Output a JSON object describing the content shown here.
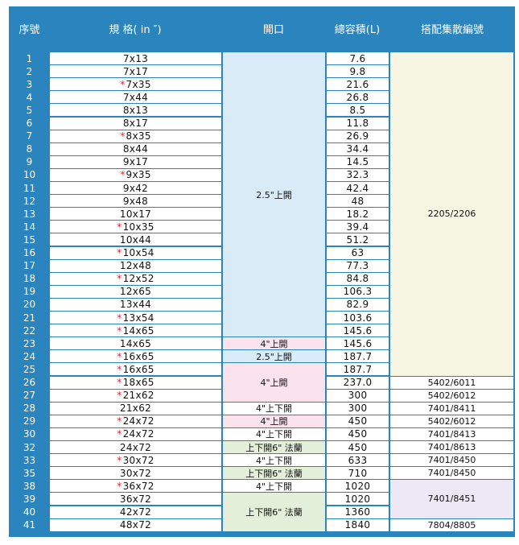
{
  "headers": [
    "序號",
    "規 格( in ″)",
    "開口",
    "總容積(L)",
    "搭配集散編號"
  ],
  "rows": [
    {
      "no": "1",
      "star": false,
      "spec": "7x13",
      "vol": "7.6"
    },
    {
      "no": "2",
      "star": false,
      "spec": "7x17",
      "vol": "9.8"
    },
    {
      "no": "3",
      "star": true,
      "spec": "7x35",
      "vol": "21.6"
    },
    {
      "no": "4",
      "star": false,
      "spec": "7x44",
      "vol": "26.8"
    },
    {
      "no": "5",
      "star": false,
      "spec": "8x13",
      "vol": "8.5"
    },
    {
      "no": "6",
      "star": false,
      "spec": "8x17",
      "vol": "11.8"
    },
    {
      "no": "7",
      "star": true,
      "spec": "8x35",
      "vol": "26.9"
    },
    {
      "no": "8",
      "star": false,
      "spec": "8x44",
      "vol": "34.4"
    },
    {
      "no": "9",
      "star": false,
      "spec": "9x17",
      "vol": "14.5"
    },
    {
      "no": "10",
      "star": true,
      "spec": "9x35",
      "vol": "32.3"
    },
    {
      "no": "11",
      "star": false,
      "spec": "9x42",
      "vol": "42.4"
    },
    {
      "no": "12",
      "star": false,
      "spec": "9x48",
      "vol": "48"
    },
    {
      "no": "13",
      "star": false,
      "spec": "10x17",
      "vol": "18.2"
    },
    {
      "no": "14",
      "star": true,
      "spec": "10x35",
      "vol": "39.4"
    },
    {
      "no": "15",
      "star": false,
      "spec": "10x44",
      "vol": "51.2"
    },
    {
      "no": "16",
      "star": true,
      "spec": "10x54",
      "vol": "63"
    },
    {
      "no": "17",
      "star": false,
      "spec": "12x48",
      "vol": "77.3"
    },
    {
      "no": "18",
      "star": true,
      "spec": "12x52",
      "vol": "84.8"
    },
    {
      "no": "19",
      "star": false,
      "spec": "12x65",
      "vol": "106.3"
    },
    {
      "no": "20",
      "star": false,
      "spec": "13x44",
      "vol": "82.9"
    },
    {
      "no": "21",
      "star": true,
      "spec": "13x54",
      "vol": "103.6"
    },
    {
      "no": "22",
      "star": true,
      "spec": "14x65",
      "vol": "145.6"
    },
    {
      "no": "23",
      "star": false,
      "spec": "14x65",
      "vol": "145.6"
    },
    {
      "no": "24",
      "star": true,
      "spec": "16x65",
      "vol": "187.7"
    },
    {
      "no": "25",
      "star": true,
      "spec": "16x65",
      "vol": "187.7"
    },
    {
      "no": "26",
      "star": true,
      "spec": "18x65",
      "vol": "237.0"
    },
    {
      "no": "27",
      "star": true,
      "spec": "21x62",
      "vol": "300"
    },
    {
      "no": "28",
      "star": false,
      "spec": "21x62",
      "vol": "300"
    },
    {
      "no": "29",
      "star": true,
      "spec": "24x72",
      "vol": "450"
    },
    {
      "no": "30",
      "star": true,
      "spec": "24x72",
      "vol": "450"
    },
    {
      "no": "32",
      "star": false,
      "spec": "24x72",
      "vol": "450"
    },
    {
      "no": "33",
      "star": true,
      "spec": "30x72",
      "vol": "633"
    },
    {
      "no": "35",
      "star": false,
      "spec": "30x72",
      "vol": "710"
    },
    {
      "no": "38",
      "star": true,
      "spec": "36x72",
      "vol": "1020"
    },
    {
      "no": "39",
      "star": false,
      "spec": "36x72",
      "vol": "1020"
    },
    {
      "no": "40",
      "star": false,
      "spec": "42x72",
      "vol": "1360"
    },
    {
      "no": "41",
      "star": false,
      "spec": "48x72",
      "vol": "1840"
    }
  ],
  "star_symbol": "*",
  "openings": [
    {
      "text": "2.5\"上開",
      "start": 0,
      "span": 22,
      "color": "#d9ebf6"
    },
    {
      "text": "4\"上開",
      "start": 22,
      "span": 1,
      "color": "#fbe3ee"
    },
    {
      "text": "2.5\"上開",
      "start": 23,
      "span": 1,
      "color": "#d9ebf6"
    },
    {
      "text": "4\"上開",
      "start": 24,
      "span": 3,
      "color": "#fbe3ee"
    },
    {
      "text": "4\"上下開",
      "start": 27,
      "span": 1,
      "color": "#ffffff"
    },
    {
      "text": "4\"上開",
      "start": 28,
      "span": 1,
      "color": "#fbe3ee"
    },
    {
      "text": "4\"上下開",
      "start": 29,
      "span": 1,
      "color": "#ffffff"
    },
    {
      "text": "上下開6\"  法蘭",
      "start": 30,
      "span": 1,
      "color": "#e3efd9"
    },
    {
      "text": "4\"上下開",
      "start": 31,
      "span": 1,
      "color": "#ffffff"
    },
    {
      "text": "上下開6\"  法蘭",
      "start": 32,
      "span": 1,
      "color": "#e3efd9"
    },
    {
      "text": "4\"上下開",
      "start": 33,
      "span": 1,
      "color": "#ffffff"
    },
    {
      "text": "上下開6\"  法蘭",
      "start": 34,
      "span": 3,
      "color": "#e3efd9"
    }
  ],
  "matches": [
    {
      "text": "2205/2206",
      "start": 0,
      "span": 25,
      "color": "#f6f6e2"
    },
    {
      "text": "5402/6011",
      "start": 25,
      "span": 1,
      "color": "#ffffff"
    },
    {
      "text": "5402/6012",
      "start": 26,
      "span": 1,
      "color": "#ffffff"
    },
    {
      "text": "7401/8411",
      "start": 27,
      "span": 1,
      "color": "#ffffff"
    },
    {
      "text": "5402/6012",
      "start": 28,
      "span": 1,
      "color": "#ffffff"
    },
    {
      "text": "7401/8413",
      "start": 29,
      "span": 1,
      "color": "#ffffff"
    },
    {
      "text": "7401/8613",
      "start": 30,
      "span": 1,
      "color": "#ffffff"
    },
    {
      "text": "7401/8450",
      "start": 31,
      "span": 1,
      "color": "#ffffff"
    },
    {
      "text": "7401/8450",
      "start": 32,
      "span": 1,
      "color": "#ffffff"
    },
    {
      "text": "7401/8451",
      "start": 33,
      "span": 3,
      "color": "#ede8f5"
    },
    {
      "text": "7804/8805",
      "start": 36,
      "span": 1,
      "color": "#ffffff"
    }
  ],
  "colors": {
    "frame": "#2a84bd",
    "star": "#e0272b"
  }
}
